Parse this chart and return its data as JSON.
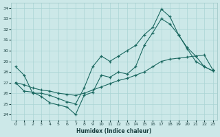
{
  "xlabel": "Humidex (Indice chaleur)",
  "xlim": [
    -0.5,
    23.5
  ],
  "ylim": [
    23.5,
    34.5
  ],
  "yticks": [
    24,
    25,
    26,
    27,
    28,
    29,
    30,
    31,
    32,
    33,
    34
  ],
  "xticks": [
    0,
    1,
    2,
    3,
    4,
    5,
    6,
    7,
    8,
    9,
    10,
    11,
    12,
    13,
    14,
    15,
    16,
    17,
    18,
    19,
    20,
    21,
    22,
    23
  ],
  "background_color": "#cce8e8",
  "grid_color": "#aad4d4",
  "line_color": "#1a6860",
  "series": [
    {
      "x": [
        0,
        1,
        2,
        3,
        4,
        5,
        6,
        7,
        8,
        9,
        10,
        11,
        12,
        13,
        14,
        15,
        16,
        17,
        18,
        19,
        20,
        21,
        22,
        23
      ],
      "y": [
        27.0,
        26.2,
        26.1,
        25.7,
        25.1,
        24.9,
        24.7,
        24.0,
        25.8,
        26.1,
        27.7,
        27.5,
        28.0,
        27.8,
        28.5,
        30.5,
        31.7,
        33.0,
        32.5,
        31.5,
        30.2,
        29.0,
        28.5,
        28.1
      ]
    },
    {
      "x": [
        0,
        1,
        2,
        3,
        4,
        5,
        6,
        7,
        8,
        9,
        10,
        11,
        12,
        13,
        14,
        15,
        16,
        17,
        18,
        19,
        20,
        21,
        22,
        23
      ],
      "y": [
        28.5,
        27.7,
        26.0,
        26.0,
        25.8,
        25.5,
        25.2,
        25.0,
        26.5,
        28.5,
        29.5,
        29.0,
        29.5,
        30.0,
        30.5,
        31.5,
        32.2,
        33.9,
        33.2,
        31.5,
        30.3,
        29.5,
        28.5,
        28.1
      ]
    },
    {
      "x": [
        0,
        1,
        2,
        3,
        4,
        5,
        6,
        7,
        8,
        9,
        10,
        11,
        12,
        13,
        14,
        15,
        16,
        17,
        18,
        19,
        20,
        21,
        22,
        23
      ],
      "y": [
        27.0,
        26.8,
        26.5,
        26.3,
        26.2,
        26.0,
        25.9,
        25.8,
        26.0,
        26.3,
        26.6,
        26.9,
        27.2,
        27.4,
        27.7,
        28.0,
        28.5,
        29.0,
        29.2,
        29.3,
        29.4,
        29.5,
        29.6,
        28.2
      ]
    }
  ]
}
